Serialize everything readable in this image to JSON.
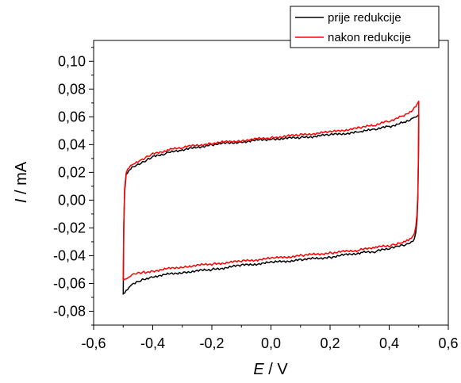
{
  "chart_data": {
    "type": "line",
    "xlabel": {
      "symbol": "E",
      "unit": " / V"
    },
    "ylabel": {
      "symbol": "I",
      "unit": " / mA"
    },
    "xlim": [
      -0.6,
      0.6
    ],
    "ylim": [
      -0.09,
      0.115
    ],
    "xticks": [
      -0.6,
      -0.4,
      -0.2,
      0.0,
      0.2,
      0.4,
      0.6
    ],
    "xtick_labels": [
      "-0,6",
      "-0,4",
      "-0,2",
      "0,0",
      "0,2",
      "0,4",
      "0,6"
    ],
    "yticks": [
      -0.08,
      -0.06,
      -0.04,
      -0.02,
      0.0,
      0.02,
      0.04,
      0.06,
      0.08,
      0.1
    ],
    "ytick_labels": [
      "-0,08",
      "-0,06",
      "-0,04",
      "-0,02",
      "0,00",
      "0,02",
      "0,04",
      "0,06",
      "0,08",
      "0,10"
    ],
    "grid": false,
    "legend_position": "top-right",
    "series": [
      {
        "name": "prije redukcije",
        "color": "#000000",
        "x": [
          -0.5,
          -0.498,
          -0.495,
          -0.49,
          -0.48,
          -0.46,
          -0.44,
          -0.42,
          -0.4,
          -0.35,
          -0.3,
          -0.2,
          -0.1,
          0.0,
          0.1,
          0.2,
          0.3,
          0.35,
          0.4,
          0.45,
          0.48,
          0.49,
          0.495,
          0.5,
          0.5,
          0.499,
          0.497,
          0.494,
          0.49,
          0.485,
          0.48,
          0.47,
          0.46,
          0.44,
          0.42,
          0.4,
          0.35,
          0.3,
          0.2,
          0.1,
          0.0,
          -0.1,
          -0.2,
          -0.3,
          -0.4,
          -0.43,
          -0.45,
          -0.47,
          -0.48,
          -0.49,
          -0.5,
          -0.5
        ],
        "y": [
          -0.068,
          -0.02,
          0.005,
          0.018,
          0.022,
          0.025,
          0.027,
          0.029,
          0.031,
          0.034,
          0.036,
          0.04,
          0.042,
          0.044,
          0.045,
          0.047,
          0.049,
          0.051,
          0.053,
          0.056,
          0.059,
          0.06,
          0.061,
          0.062,
          0.062,
          0.03,
          0.0,
          -0.015,
          -0.023,
          -0.027,
          -0.029,
          -0.031,
          -0.032,
          -0.033,
          -0.034,
          -0.035,
          -0.037,
          -0.038,
          -0.041,
          -0.043,
          -0.045,
          -0.047,
          -0.05,
          -0.052,
          -0.055,
          -0.057,
          -0.059,
          -0.061,
          -0.063,
          -0.065,
          -0.067,
          -0.068
        ]
      },
      {
        "name": "nakon redukcije",
        "color": "#ff0000",
        "x": [
          -0.5,
          -0.498,
          -0.495,
          -0.49,
          -0.48,
          -0.46,
          -0.44,
          -0.42,
          -0.4,
          -0.35,
          -0.3,
          -0.2,
          -0.1,
          0.0,
          0.1,
          0.2,
          0.3,
          0.35,
          0.4,
          0.45,
          0.48,
          0.49,
          0.495,
          0.5,
          0.5,
          0.499,
          0.497,
          0.494,
          0.49,
          0.485,
          0.48,
          0.47,
          0.46,
          0.44,
          0.42,
          0.4,
          0.35,
          0.3,
          0.2,
          0.1,
          0.0,
          -0.1,
          -0.2,
          -0.3,
          -0.4,
          -0.43,
          -0.45,
          -0.47,
          -0.48,
          -0.49,
          -0.5,
          -0.5
        ],
        "y": [
          -0.058,
          -0.018,
          0.008,
          0.02,
          0.024,
          0.027,
          0.029,
          0.031,
          0.033,
          0.036,
          0.038,
          0.041,
          0.043,
          0.045,
          0.047,
          0.049,
          0.052,
          0.054,
          0.057,
          0.061,
          0.065,
          0.067,
          0.069,
          0.071,
          0.071,
          0.035,
          0.005,
          -0.01,
          -0.019,
          -0.024,
          -0.026,
          -0.028,
          -0.029,
          -0.031,
          -0.032,
          -0.033,
          -0.034,
          -0.036,
          -0.038,
          -0.04,
          -0.042,
          -0.044,
          -0.046,
          -0.048,
          -0.051,
          -0.052,
          -0.053,
          -0.054,
          -0.055,
          -0.056,
          -0.057,
          -0.058
        ]
      }
    ]
  }
}
